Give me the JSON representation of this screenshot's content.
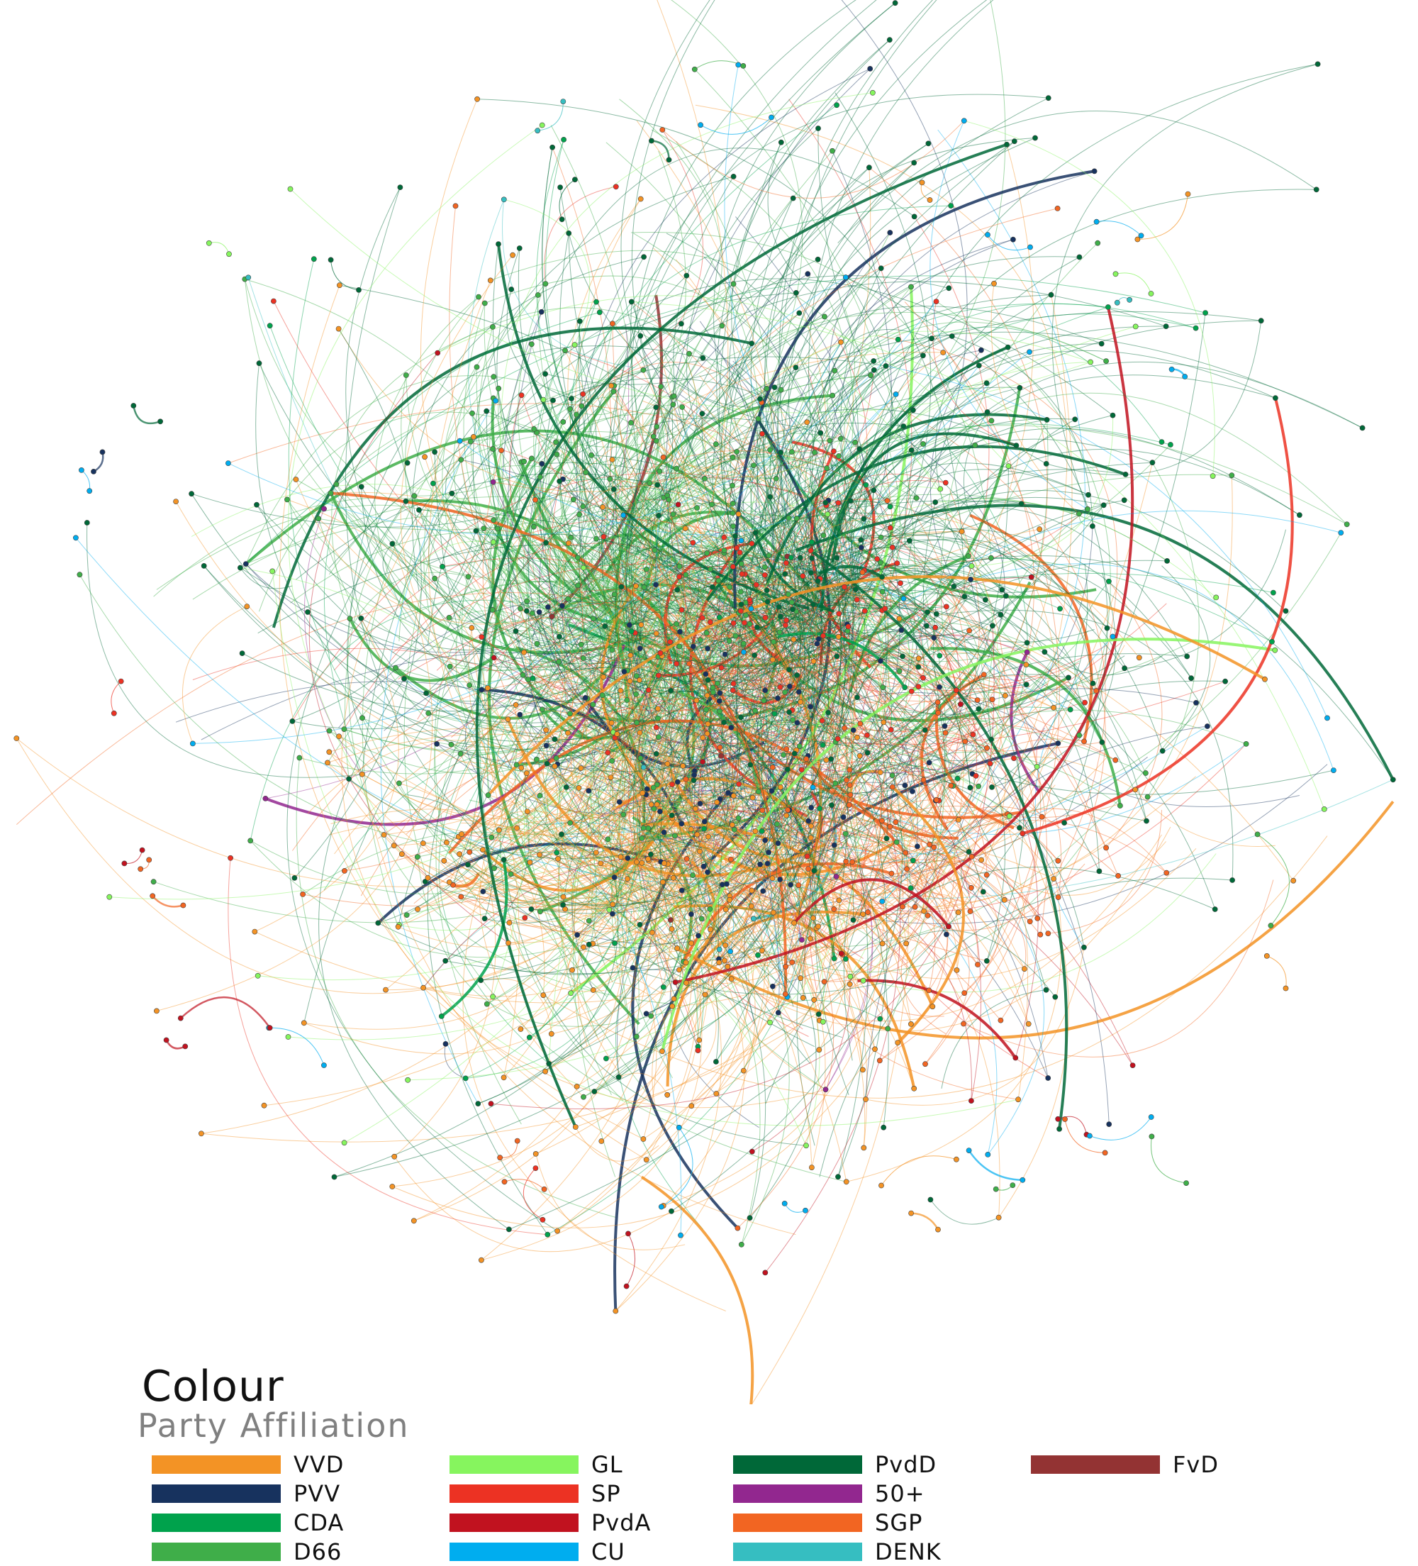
{
  "legend": {
    "title": "Colour",
    "subtitle": "Party Affiliation",
    "items": [
      {
        "label": "VVD",
        "color": "#f39325"
      },
      {
        "label": "PVV",
        "color": "#17325e"
      },
      {
        "label": "CDA",
        "color": "#00a24c"
      },
      {
        "label": "D66",
        "color": "#3fae49"
      },
      {
        "label": "GL",
        "color": "#86f55e"
      },
      {
        "label": "SP",
        "color": "#ec3223"
      },
      {
        "label": "PvdA",
        "color": "#c1121f"
      },
      {
        "label": "CU",
        "color": "#00adef"
      },
      {
        "label": "PvdD",
        "color": "#006838"
      },
      {
        "label": "50+",
        "color": "#92278f"
      },
      {
        "label": "SGP",
        "color": "#f26522"
      },
      {
        "label": "DENK",
        "color": "#36bec1"
      },
      {
        "label": "FvD",
        "color": "#933333"
      }
    ]
  }
}
